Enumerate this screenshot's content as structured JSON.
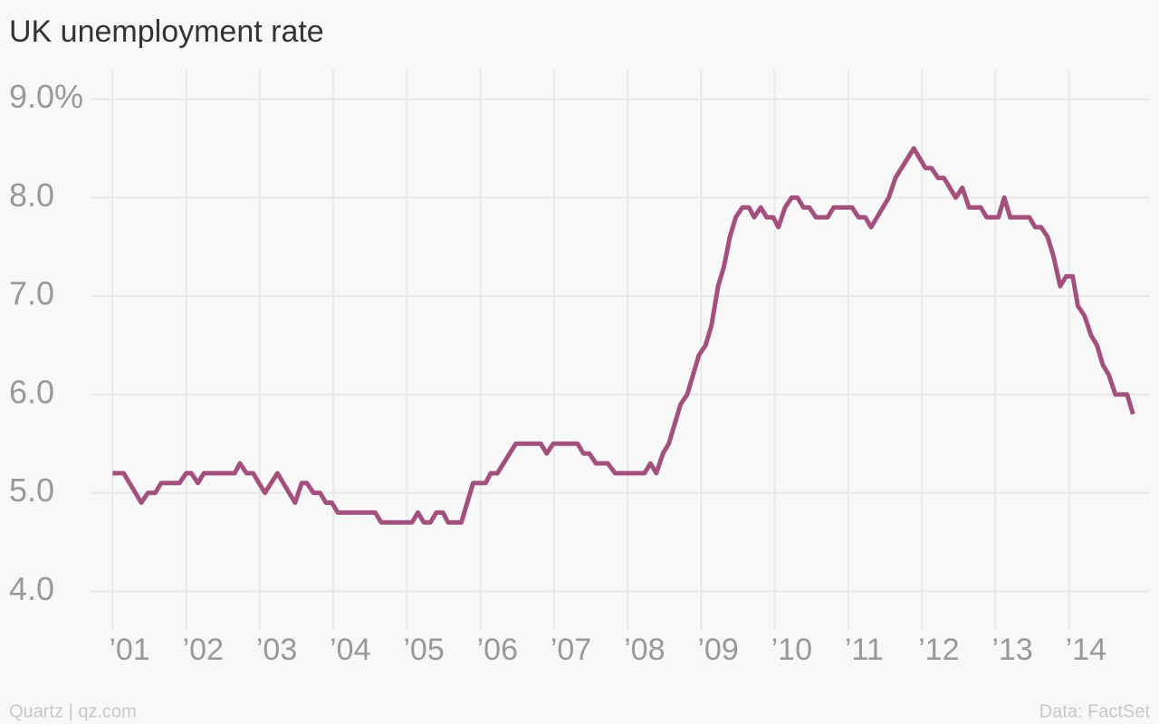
{
  "chart_data": {
    "type": "line",
    "title": "UK unemployment rate",
    "source_left": "Quartz | qz.com",
    "source_right": "Data: FactSet",
    "color": "#a3507f",
    "grid": true,
    "x": [
      2001.0,
      2001.15,
      2001.39,
      2001.48,
      2001.58,
      2001.66,
      2001.91,
      2002.0,
      2002.07,
      2002.16,
      2002.24,
      2002.66,
      2002.73,
      2002.82,
      2002.91,
      2003.07,
      2003.24,
      2003.48,
      2003.57,
      2003.64,
      2003.73,
      2003.82,
      2003.9,
      2003.98,
      2004.06,
      2004.57,
      2004.65,
      2005.07,
      2005.15,
      2005.23,
      2005.32,
      2005.4,
      2005.49,
      2005.56,
      2005.74,
      2005.9,
      2006.07,
      2006.14,
      2006.23,
      2006.48,
      2006.82,
      2006.9,
      2006.99,
      2007.32,
      2007.4,
      2007.48,
      2007.57,
      2007.73,
      2007.83,
      2008.23,
      2008.31,
      2008.39,
      2008.48,
      2008.56,
      2008.72,
      2008.81,
      2008.97,
      2009.06,
      2009.14,
      2009.23,
      2009.31,
      2009.39,
      2009.47,
      2009.56,
      2009.65,
      2009.72,
      2009.81,
      2009.89,
      2009.98,
      2010.05,
      2010.14,
      2010.23,
      2010.31,
      2010.39,
      2010.47,
      2010.56,
      2010.72,
      2010.8,
      2011.05,
      2011.14,
      2011.23,
      2011.31,
      2011.55,
      2011.64,
      2011.89,
      2012.05,
      2012.13,
      2012.22,
      2012.3,
      2012.46,
      2012.55,
      2012.64,
      2012.8,
      2012.88,
      2013.04,
      2013.12,
      2013.2,
      2013.46,
      2013.54,
      2013.62,
      2013.71,
      2013.79,
      2013.88,
      2013.96,
      2014.05,
      2014.12,
      2014.21,
      2014.3,
      2014.38,
      2014.46,
      2014.54,
      2014.63,
      2014.79,
      2014.87
    ],
    "values": [
      5.2,
      5.2,
      4.9,
      5.0,
      5.0,
      5.1,
      5.1,
      5.2,
      5.2,
      5.1,
      5.2,
      5.2,
      5.3,
      5.2,
      5.2,
      5.0,
      5.2,
      4.9,
      5.1,
      5.1,
      5.0,
      5.0,
      4.9,
      4.9,
      4.8,
      4.8,
      4.7,
      4.7,
      4.8,
      4.7,
      4.7,
      4.8,
      4.8,
      4.7,
      4.7,
      5.1,
      5.1,
      5.2,
      5.2,
      5.5,
      5.5,
      5.4,
      5.5,
      5.5,
      5.4,
      5.4,
      5.3,
      5.3,
      5.2,
      5.2,
      5.3,
      5.2,
      5.4,
      5.5,
      5.9,
      6.0,
      6.4,
      6.5,
      6.7,
      7.1,
      7.3,
      7.6,
      7.8,
      7.9,
      7.9,
      7.8,
      7.9,
      7.8,
      7.8,
      7.7,
      7.9,
      8.0,
      8.0,
      7.9,
      7.9,
      7.8,
      7.8,
      7.9,
      7.9,
      7.8,
      7.8,
      7.7,
      8.0,
      8.2,
      8.5,
      8.3,
      8.3,
      8.2,
      8.2,
      8.0,
      8.1,
      7.9,
      7.9,
      7.8,
      7.8,
      8.0,
      7.8,
      7.8,
      7.7,
      7.7,
      7.6,
      7.4,
      7.1,
      7.2,
      7.2,
      6.9,
      6.8,
      6.6,
      6.5,
      6.3,
      6.2,
      6.0,
      6.0,
      5.8
    ],
    "xlim": [
      2000.7,
      2015.1
    ],
    "xticks": [
      {
        "value": 2001,
        "label": "’01"
      },
      {
        "value": 2002,
        "label": "’02"
      },
      {
        "value": 2003,
        "label": "’03"
      },
      {
        "value": 2004,
        "label": "’04"
      },
      {
        "value": 2005,
        "label": "’05"
      },
      {
        "value": 2006,
        "label": "’06"
      },
      {
        "value": 2007,
        "label": "’07"
      },
      {
        "value": 2008,
        "label": "’08"
      },
      {
        "value": 2009,
        "label": "’09"
      },
      {
        "value": 2010,
        "label": "’10"
      },
      {
        "value": 2011,
        "label": "’11"
      },
      {
        "value": 2012,
        "label": "’12"
      },
      {
        "value": 2013,
        "label": "’13"
      },
      {
        "value": 2014,
        "label": "’14"
      }
    ],
    "ylim": [
      3.7,
      9.3
    ],
    "yticks": [
      {
        "value": 4,
        "label": "4.0"
      },
      {
        "value": 5,
        "label": "5.0"
      },
      {
        "value": 6,
        "label": "6.0"
      },
      {
        "value": 7,
        "label": "7.0"
      },
      {
        "value": 8,
        "label": "8.0"
      },
      {
        "value": 9,
        "label": "9.0%"
      }
    ]
  }
}
